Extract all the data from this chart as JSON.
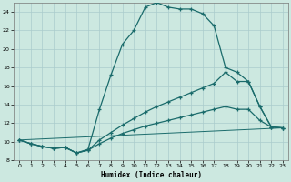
{
  "xlabel": "Humidex (Indice chaleur)",
  "background_color": "#cce8e0",
  "grid_color": "#aacccc",
  "line_color": "#1a6b6b",
  "xlim": [
    -0.5,
    23.5
  ],
  "ylim": [
    8,
    25
  ],
  "x_ticks": [
    0,
    1,
    2,
    3,
    4,
    5,
    6,
    7,
    8,
    9,
    10,
    11,
    12,
    13,
    14,
    15,
    16,
    17,
    18,
    19,
    20,
    21,
    22,
    23
  ],
  "y_ticks": [
    8,
    10,
    12,
    14,
    16,
    18,
    20,
    22,
    24
  ],
  "curve1_x": [
    0,
    1,
    2,
    3,
    4,
    5,
    6,
    7,
    8,
    9,
    10,
    11,
    12,
    13,
    14,
    15,
    16,
    17,
    18,
    19,
    20,
    21,
    22,
    23
  ],
  "curve1_y": [
    10.2,
    9.8,
    9.5,
    9.3,
    9.4,
    8.8,
    9.2,
    13.5,
    17.2,
    20.5,
    22.0,
    24.5,
    25.0,
    24.5,
    24.3,
    24.3,
    23.8,
    22.5,
    18.0,
    17.5,
    16.5,
    13.8,
    11.6,
    11.5
  ],
  "curve2_x": [
    0,
    1,
    2,
    3,
    4,
    5,
    6,
    7,
    8,
    9,
    10,
    11,
    12,
    13,
    14,
    15,
    16,
    17,
    18,
    19,
    20,
    21,
    22,
    23
  ],
  "curve2_y": [
    10.2,
    9.8,
    9.5,
    9.3,
    9.4,
    8.8,
    9.1,
    10.2,
    11.0,
    11.8,
    12.5,
    13.2,
    13.8,
    14.3,
    14.8,
    15.3,
    15.8,
    16.3,
    17.5,
    16.5,
    16.5,
    13.8,
    11.6,
    11.5
  ],
  "curve3_x": [
    0,
    1,
    2,
    3,
    4,
    5,
    6,
    7,
    8,
    9,
    10,
    11,
    12,
    13,
    14,
    15,
    16,
    17,
    18,
    19,
    20,
    21,
    22,
    23
  ],
  "curve3_y": [
    10.2,
    9.8,
    9.5,
    9.3,
    9.4,
    8.8,
    9.1,
    9.8,
    10.4,
    10.9,
    11.3,
    11.7,
    12.0,
    12.3,
    12.6,
    12.9,
    13.2,
    13.5,
    13.8,
    13.5,
    13.5,
    12.3,
    11.6,
    11.5
  ],
  "curve4_x": [
    0,
    23
  ],
  "curve4_y": [
    10.2,
    11.5
  ]
}
